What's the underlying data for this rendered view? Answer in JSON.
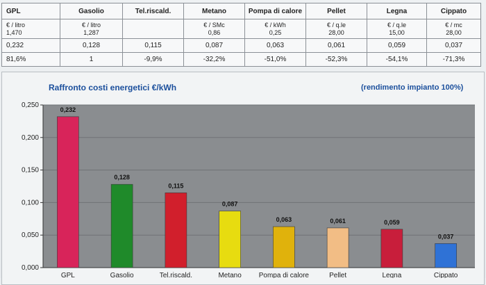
{
  "table": {
    "headers": [
      "GPL",
      "Gasolio",
      "Tel.riscald.",
      "Metano",
      "Pompa di calore",
      "Pellet",
      "Legna",
      "Cippato"
    ],
    "units": [
      "€ / litro",
      "€ / litro",
      "",
      "€ / SMc",
      "€ / kWh",
      "€ / q.le",
      "€ / q.le",
      "€ / mc"
    ],
    "prices": [
      "1,470",
      "1,287",
      "",
      "0,86",
      "0,25",
      "28,00",
      "15,00",
      "28,00"
    ],
    "cost_kwh": [
      "0,232",
      "0,128",
      "0,115",
      "0,087",
      "0,063",
      "0,061",
      "0,059",
      "0,037"
    ],
    "index": [
      "81,6%",
      "1",
      "-9,9%",
      "-32,2%",
      "-51,0%",
      "-52,3%",
      "-54,1%",
      "-71,3%"
    ]
  },
  "chart": {
    "title": "Raffronto costi energetici  €/kWh",
    "note": "(rendimento impianto 100%)"
  },
  "chart_data": {
    "type": "bar",
    "title": "Raffronto costi energetici  €/kWh",
    "categories": [
      "GPL",
      "Gasolio",
      "Tel.riscald.",
      "Metano",
      "Pompa di calore",
      "Pellet",
      "Legna",
      "Cippato"
    ],
    "values": [
      0.232,
      0.128,
      0.115,
      0.087,
      0.063,
      0.061,
      0.059,
      0.037
    ],
    "value_labels": [
      "0,232",
      "0,128",
      "0,115",
      "0,087",
      "0,063",
      "0,061",
      "0,059",
      "0,037"
    ],
    "colors": [
      "#d8245a",
      "#1f8a2a",
      "#d11f2c",
      "#e7dc10",
      "#e0b20c",
      "#f2bd85",
      "#c81e3b",
      "#2f72d6"
    ],
    "yticks": [
      "0,000",
      "0,050",
      "0,100",
      "0,150",
      "0,200",
      "0,250"
    ],
    "ylim": [
      0,
      0.25
    ],
    "grid": true,
    "plot_background": "#8a8d90",
    "xlabel": "",
    "ylabel": ""
  }
}
